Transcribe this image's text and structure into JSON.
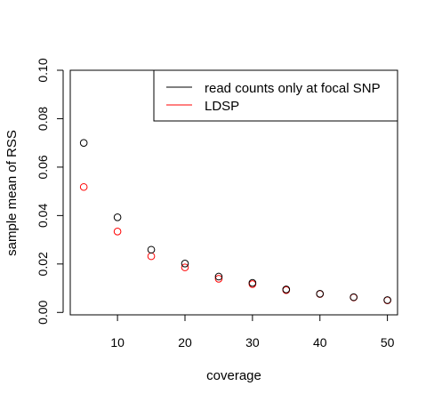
{
  "chart_data": {
    "type": "scatter",
    "title": "",
    "xlabel": "coverage",
    "ylabel": "sample mean of RSS",
    "xlim": [
      3,
      51.5
    ],
    "ylim": [
      -0.001,
      0.1
    ],
    "x_ticks": [
      10,
      20,
      30,
      40,
      50
    ],
    "y_ticks": [
      0.0,
      0.02,
      0.04,
      0.06,
      0.08,
      0.1
    ],
    "y_tick_labels": [
      "0.00",
      "0.02",
      "0.04",
      "0.06",
      "0.08",
      "0.10"
    ],
    "grid": false,
    "legend_position": "top-right",
    "series": [
      {
        "name": "read counts only at focal SNP",
        "color": "#000000",
        "x": [
          5,
          10,
          15,
          20,
          25,
          30,
          35,
          40,
          45,
          50
        ],
        "y": [
          0.07,
          0.0393,
          0.0259,
          0.0202,
          0.0148,
          0.0122,
          0.0095,
          0.0077,
          0.0063,
          0.0051
        ]
      },
      {
        "name": "LDSP",
        "color": "#ff0000",
        "x": [
          5,
          10,
          15,
          20,
          25,
          30,
          35,
          40,
          45,
          50
        ],
        "y": [
          0.0518,
          0.0334,
          0.0232,
          0.0186,
          0.0139,
          0.0117,
          0.0092,
          0.0076,
          0.0062,
          0.005
        ]
      }
    ]
  }
}
